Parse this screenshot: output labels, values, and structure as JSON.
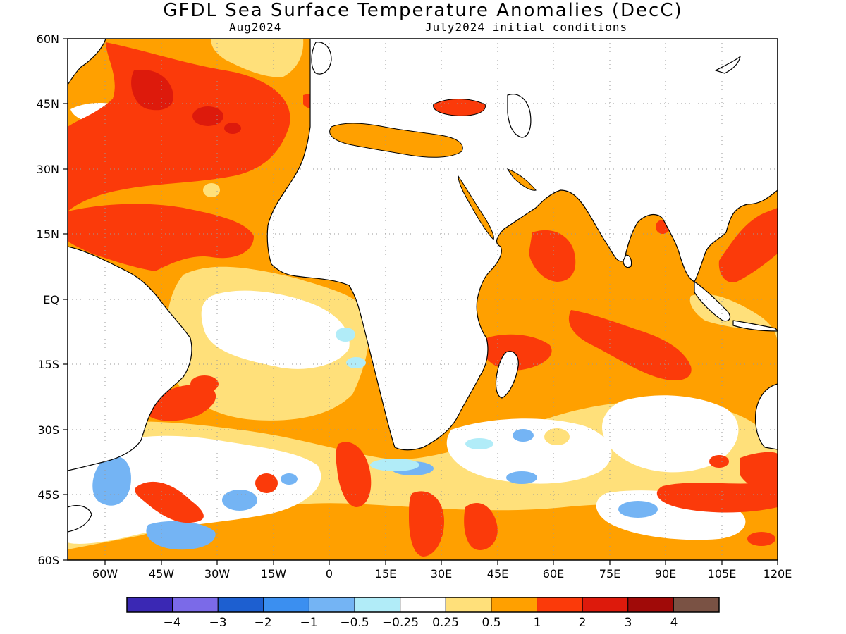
{
  "title": "GFDL Sea Surface Temperature Anomalies (DecC)",
  "subtitle_left": "Aug2024",
  "subtitle_right": "July2024 initial conditions",
  "axes": {
    "x_ticks": [
      "60W",
      "45W",
      "30W",
      "15W",
      "0",
      "15E",
      "30E",
      "45E",
      "60E",
      "75E",
      "90E",
      "105E",
      "120E"
    ],
    "y_ticks": [
      "60N",
      "45N",
      "30N",
      "15N",
      "EQ",
      "15S",
      "30S",
      "45S",
      "60S"
    ],
    "lon_range": [
      -70,
      120
    ],
    "lat_range": [
      -60,
      60
    ],
    "grid": "dotted"
  },
  "colorbar": {
    "colors": [
      "#3a28b4",
      "#7b6ae8",
      "#1d5fd0",
      "#3b8ff0",
      "#74b4f4",
      "#b1ecf8",
      "#ffffff",
      "#ffe07a",
      "#ffa000",
      "#fb3a0a",
      "#dd1a0c",
      "#a00a08",
      "#7a5244"
    ],
    "labels": [
      "−4",
      "−3",
      "−2",
      "−1",
      "−0.5",
      "−0.25",
      "0.25",
      "0.5",
      "1",
      "2",
      "3",
      "4"
    ]
  },
  "land_color": "#ffffff",
  "coastline_color": "#000000"
}
